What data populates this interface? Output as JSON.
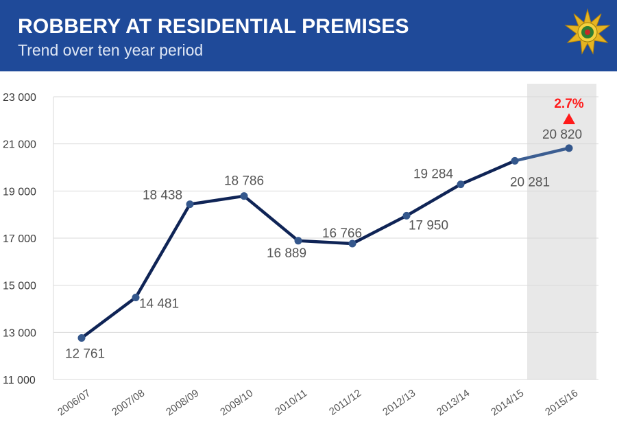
{
  "header": {
    "title": "ROBBERY AT RESIDENTIAL PREMISES",
    "subtitle": "Trend over ten year period"
  },
  "colors": {
    "header_bg": "#1f4a99",
    "line": "#0f2456",
    "marker": "#34578c",
    "highlight": "#e8e8e8",
    "increase": "#ff1a1a",
    "badge_gold": "#e6b422"
  },
  "icons": {
    "logo": "police-star-badge-icon",
    "trend": "up-triangle-icon"
  },
  "chart_data": {
    "type": "line",
    "title": "ROBBERY AT RESIDENTIAL PREMISES",
    "subtitle": "Trend over ten year period",
    "xlabel": "",
    "ylabel": "",
    "categories": [
      "2006/07",
      "2007/08",
      "2008/09",
      "2009/10",
      "2010/11",
      "2011/12",
      "2012/13",
      "2013/14",
      "2014/15",
      "2015/16"
    ],
    "series": [
      {
        "name": "Robbery at residential premises",
        "values": [
          12761,
          14481,
          18438,
          18786,
          16889,
          16766,
          17950,
          19284,
          20281,
          20820
        ]
      }
    ],
    "data_labels": [
      "12 761",
      "14 481",
      "18 438",
      "18 786",
      "16 889",
      "16 766",
      "17 950",
      "19 284",
      "20 281",
      "20 820"
    ],
    "ylim": [
      11000,
      23000
    ],
    "yticks": [
      11000,
      13000,
      15000,
      17000,
      19000,
      21000,
      23000
    ],
    "ytick_labels": [
      "11 000",
      "13 000",
      "15 000",
      "17 000",
      "19 000",
      "21 000",
      "23 000"
    ],
    "grid": true,
    "highlighted_category": "2015/16",
    "annotation": {
      "text": "2.7%",
      "direction": "up"
    }
  }
}
